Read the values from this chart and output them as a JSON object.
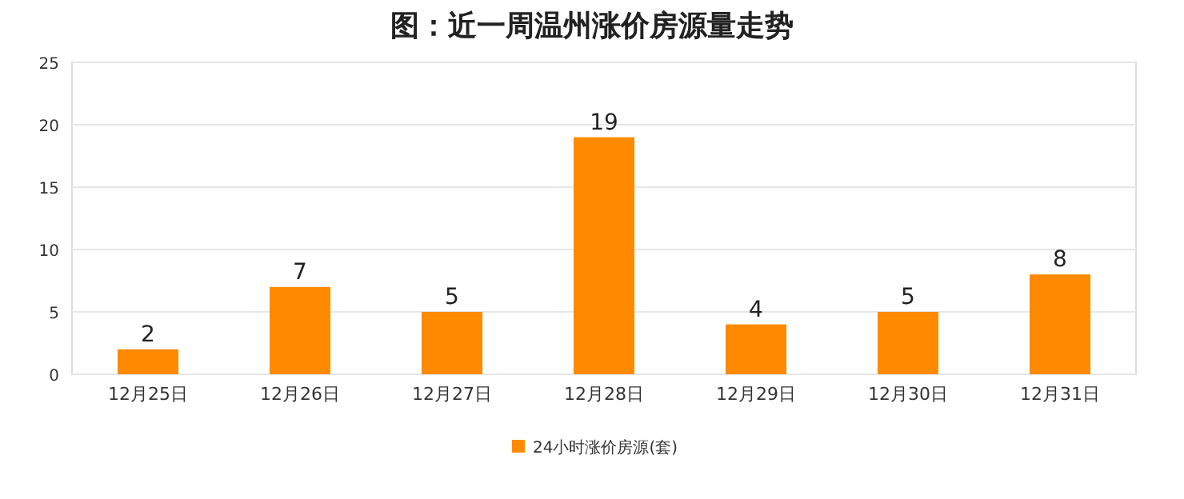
{
  "chart_data": {
    "type": "bar",
    "title": "图：近一周温州涨价房源量走势",
    "categories": [
      "12月25日",
      "12月26日",
      "12月27日",
      "12月28日",
      "12月29日",
      "12月30日",
      "12月31日"
    ],
    "series": [
      {
        "name": "24小时涨价房源(套)",
        "color": "#ff8a00",
        "values": [
          2,
          7,
          5,
          19,
          4,
          5,
          8
        ]
      }
    ],
    "ylim": [
      0,
      25
    ],
    "yticks": [
      0,
      5,
      10,
      15,
      20,
      25
    ],
    "grid": "y",
    "legend": "bottom",
    "data_labels": true
  }
}
